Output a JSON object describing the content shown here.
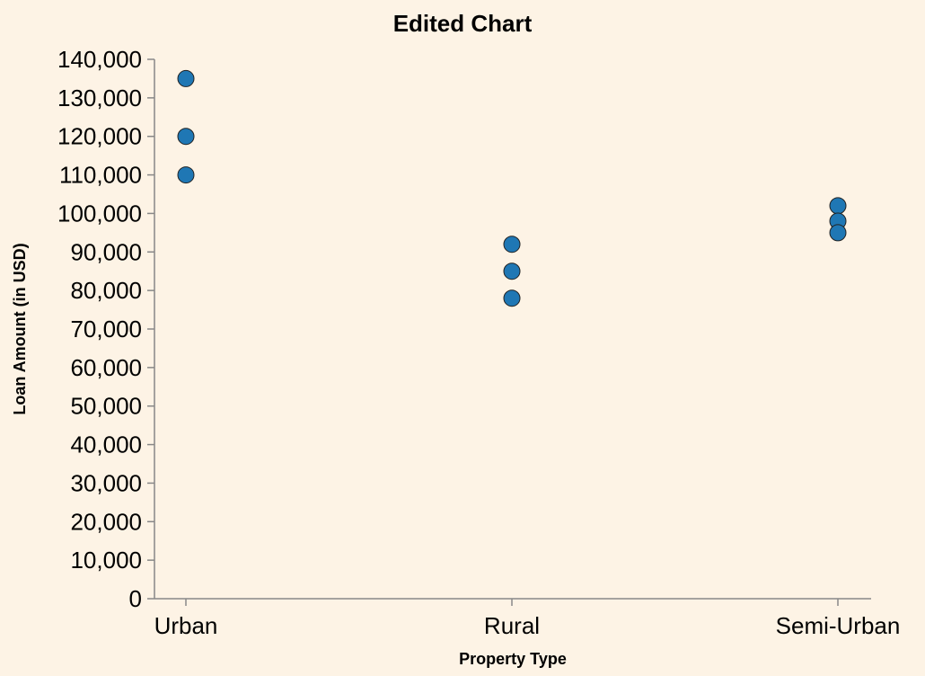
{
  "chart_data": {
    "type": "scatter",
    "title": "Edited Chart",
    "xlabel": "Property Type",
    "ylabel": "Loan Amount (in USD)",
    "categories": [
      "Urban",
      "Rural",
      "Semi-Urban"
    ],
    "ylim": [
      0,
      140000
    ],
    "yticks": [
      0,
      10000,
      20000,
      30000,
      40000,
      50000,
      60000,
      70000,
      80000,
      90000,
      100000,
      110000,
      120000,
      130000,
      140000
    ],
    "ytick_labels": [
      "0",
      "10,000",
      "20,000",
      "30,000",
      "40,000",
      "50,000",
      "60,000",
      "70,000",
      "80,000",
      "90,000",
      "100,000",
      "110,000",
      "120,000",
      "130,000",
      "140,000"
    ],
    "points": [
      {
        "category": "Urban",
        "value": 135000
      },
      {
        "category": "Urban",
        "value": 120000
      },
      {
        "category": "Urban",
        "value": 110000
      },
      {
        "category": "Rural",
        "value": 92000
      },
      {
        "category": "Rural",
        "value": 85000
      },
      {
        "category": "Rural",
        "value": 78000
      },
      {
        "category": "Semi-Urban",
        "value": 102000
      },
      {
        "category": "Semi-Urban",
        "value": 98000
      },
      {
        "category": "Semi-Urban",
        "value": 95000
      }
    ],
    "point_color": "#1f77b4",
    "background": "#fdf3e5",
    "grid": false
  }
}
